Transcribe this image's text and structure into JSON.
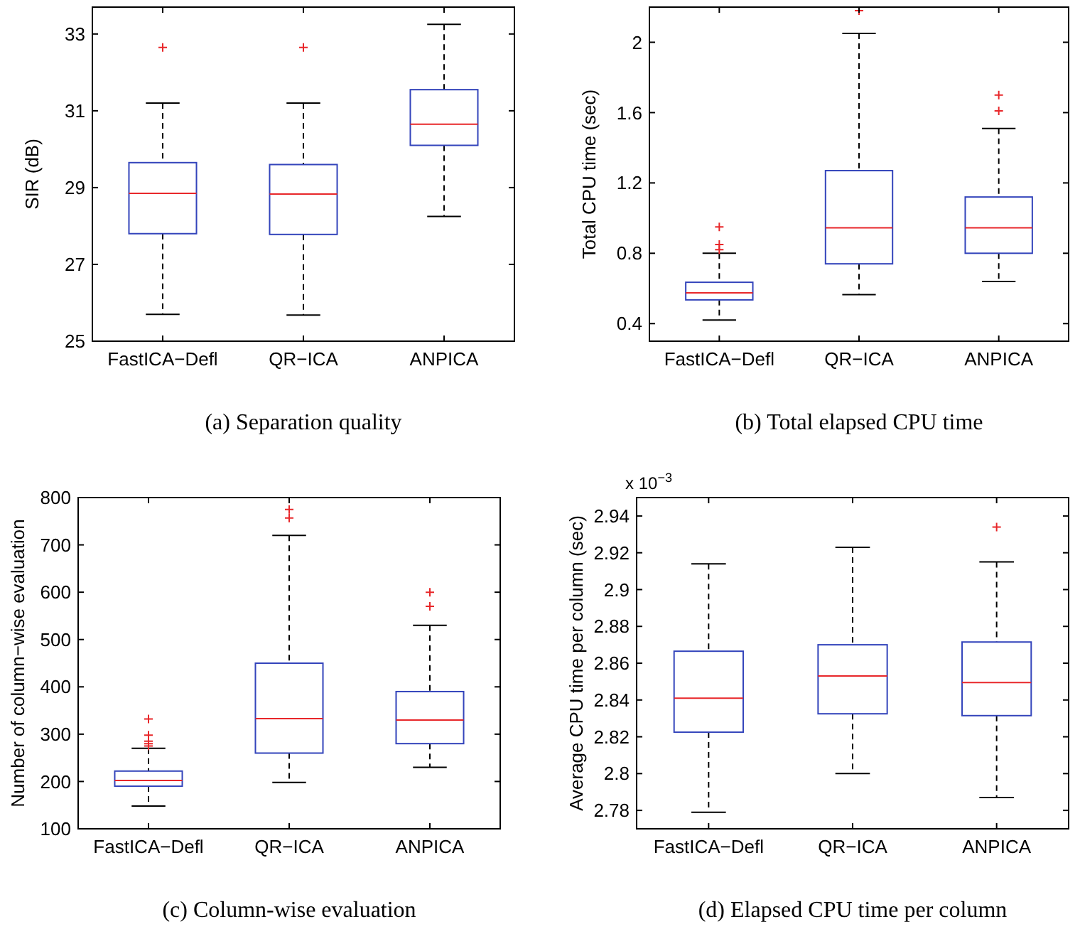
{
  "chart_data": [
    {
      "type": "box",
      "title": "(a)  Separation quality",
      "ylabel": "SIR (dB)",
      "categories": [
        "FastICA−Defl",
        "QR−ICA",
        "ANPICA"
      ],
      "color": "#3344bb",
      "grid": false,
      "marker": "cross",
      "ylim": [
        25,
        33.7
      ],
      "yticks": [
        25,
        27,
        29,
        31,
        33
      ],
      "boxes": [
        {
          "low": 25.7,
          "q1": 27.8,
          "median": 28.85,
          "q3": 29.65,
          "high": 31.2,
          "outliers": [
            32.65
          ]
        },
        {
          "low": 25.68,
          "q1": 27.78,
          "median": 28.83,
          "q3": 29.6,
          "high": 31.2,
          "outliers": [
            32.65
          ]
        },
        {
          "low": 28.25,
          "q1": 30.1,
          "median": 30.65,
          "q3": 31.55,
          "high": 33.25
        }
      ]
    },
    {
      "type": "box",
      "title": "(b)  Total elapsed CPU time",
      "ylabel": "Total CPU time (sec)",
      "categories": [
        "FastICA−Defl",
        "QR−ICA",
        "ANPICA"
      ],
      "color": "#3344bb",
      "grid": false,
      "marker": "cross",
      "ylim": [
        0.3,
        2.2
      ],
      "yticks": [
        0.4,
        0.8,
        1.2,
        1.6,
        2
      ],
      "boxes": [
        {
          "low": 0.42,
          "q1": 0.535,
          "median": 0.575,
          "q3": 0.635,
          "high": 0.8,
          "outliers": [
            0.82,
            0.85,
            0.95
          ]
        },
        {
          "low": 0.565,
          "q1": 0.74,
          "median": 0.945,
          "q3": 1.27,
          "high": 2.05,
          "outliers": [
            2.18
          ]
        },
        {
          "low": 0.64,
          "q1": 0.8,
          "median": 0.945,
          "q3": 1.12,
          "high": 1.51,
          "outliers": [
            1.61,
            1.7
          ]
        }
      ]
    },
    {
      "type": "box",
      "title": "(c)  Column-wise evaluation",
      "ylabel": "Number of column−wise evaluation",
      "categories": [
        "FastICA−Defl",
        "QR−ICA",
        "ANPICA"
      ],
      "color": "#3344bb",
      "grid": false,
      "marker": "cross",
      "ylim": [
        100,
        800
      ],
      "yticks": [
        100,
        200,
        300,
        400,
        500,
        600,
        700,
        800
      ],
      "boxes": [
        {
          "low": 148,
          "q1": 190,
          "median": 202,
          "q3": 222,
          "high": 270,
          "outliers": [
            275,
            280,
            285,
            298,
            332
          ]
        },
        {
          "low": 198,
          "q1": 260,
          "median": 333,
          "q3": 450,
          "high": 720,
          "outliers": [
            757,
            775
          ]
        },
        {
          "low": 230,
          "q1": 280,
          "median": 330,
          "q3": 390,
          "high": 530,
          "outliers": [
            570,
            600
          ]
        }
      ]
    },
    {
      "type": "box",
      "title": "(d)  Elapsed CPU time per column",
      "ylabel": "Average CPU time per column (sec)",
      "annotations": [
        "x 10$^{−3}$"
      ],
      "categories": [
        "FastICA−Defl",
        "QR−ICA",
        "ANPICA"
      ],
      "color": "#3344bb",
      "grid": false,
      "marker": "cross",
      "ylim": [
        2.77,
        2.95
      ],
      "yticks": [
        2.78,
        2.8,
        2.82,
        2.84,
        2.86,
        2.88,
        2.9,
        2.92,
        2.94
      ],
      "boxes": [
        {
          "low": 2.779,
          "q1": 2.8225,
          "median": 2.841,
          "q3": 2.8665,
          "high": 2.914
        },
        {
          "low": 2.8,
          "q1": 2.8325,
          "median": 2.853,
          "q3": 2.87,
          "high": 2.923
        },
        {
          "low": 2.787,
          "q1": 2.8315,
          "median": 2.8495,
          "q3": 2.8715,
          "high": 2.915,
          "outliers": [
            2.934
          ]
        }
      ]
    }
  ]
}
